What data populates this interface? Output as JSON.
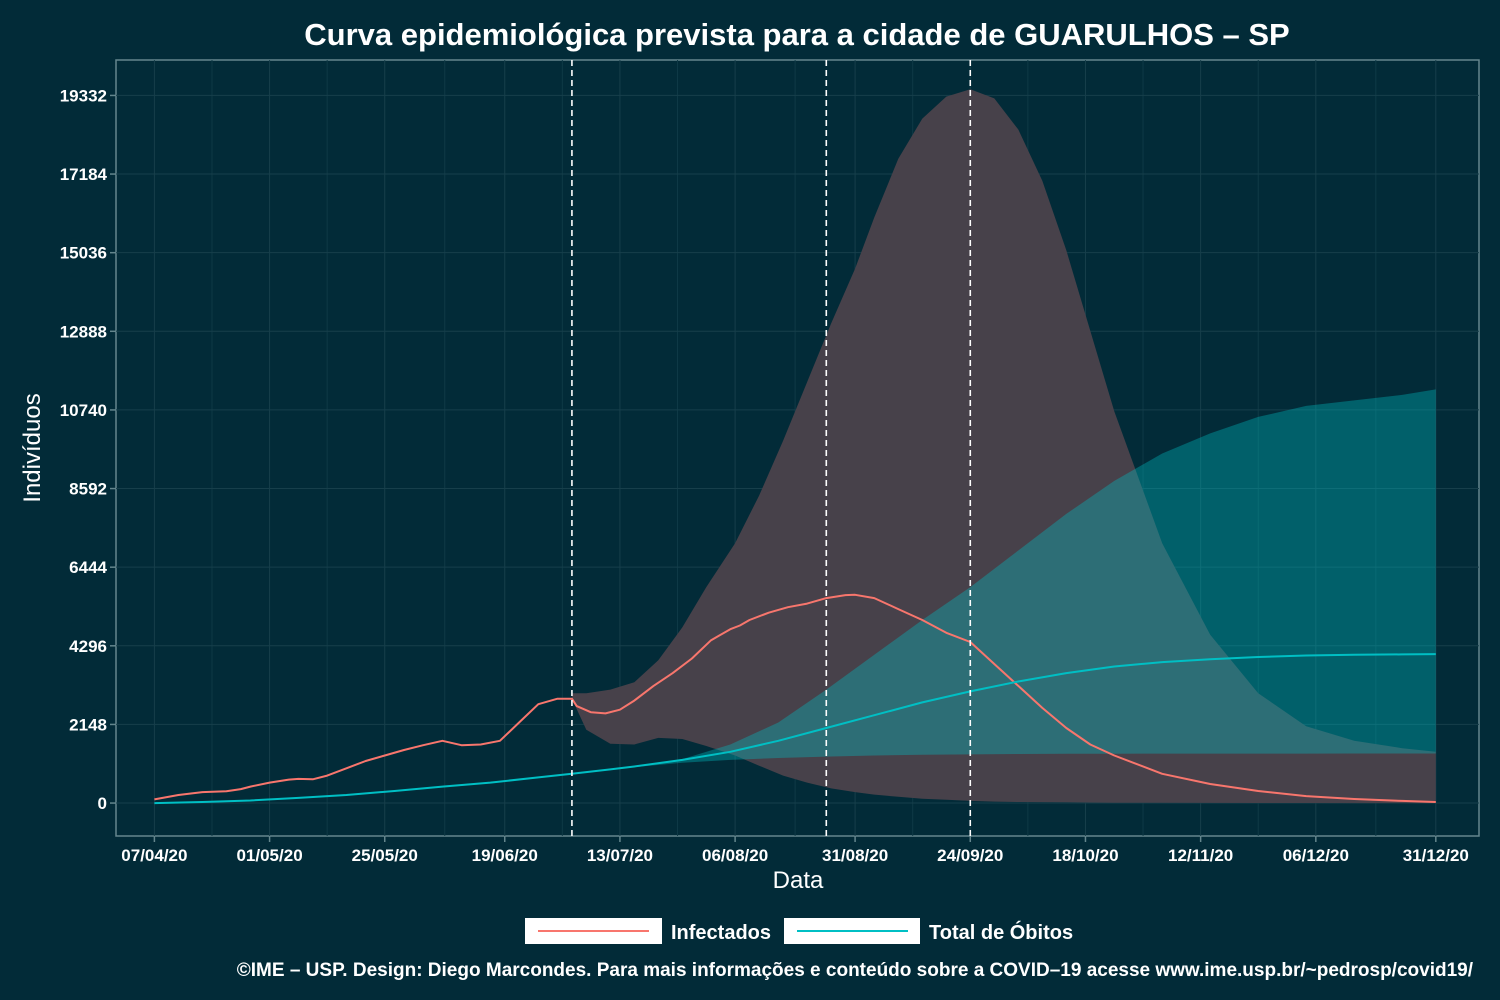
{
  "chart_data": {
    "type": "line",
    "title": "Curva epidemiológica prevista para a cidade de GUARULHOS – SP",
    "xlabel": "Data",
    "ylabel": "Indivíduos",
    "x_start": "07/04/20",
    "x_end": "31/12/20",
    "xlim_days": [
      -8,
      276
    ],
    "ylim": [
      -900,
      20300
    ],
    "x_ticks": [
      {
        "day": 0,
        "label": "07/04/20"
      },
      {
        "day": 24,
        "label": "01/05/20"
      },
      {
        "day": 48,
        "label": "25/05/20"
      },
      {
        "day": 73,
        "label": "19/06/20"
      },
      {
        "day": 97,
        "label": "13/07/20"
      },
      {
        "day": 121,
        "label": "06/08/20"
      },
      {
        "day": 146,
        "label": "31/08/20"
      },
      {
        "day": 170,
        "label": "24/09/20"
      },
      {
        "day": 194,
        "label": "18/10/20"
      },
      {
        "day": 218,
        "label": "12/11/20"
      },
      {
        "day": 242,
        "label": "06/12/20"
      },
      {
        "day": 267,
        "label": "31/12/20"
      }
    ],
    "y_ticks": [
      0,
      2148,
      4296,
      6444,
      8592,
      10740,
      12888,
      15036,
      17184,
      19332
    ],
    "vlines_days": [
      87,
      140,
      170
    ],
    "series": [
      {
        "name": "Infectados",
        "color": "#f8766d",
        "x": [
          0,
          5,
          10,
          15,
          18,
          20,
          24,
          28,
          30,
          33,
          36,
          40,
          44,
          48,
          52,
          56,
          60,
          64,
          68,
          72,
          76,
          80,
          84,
          87,
          88,
          91,
          94,
          97,
          100,
          104,
          108,
          112,
          116,
          120,
          122,
          124,
          128,
          132,
          136,
          140,
          144,
          146,
          150,
          155,
          160,
          165,
          170,
          175,
          180,
          185,
          190,
          195,
          200,
          210,
          220,
          230,
          240,
          250,
          260,
          267
        ],
        "y": [
          100,
          220,
          300,
          320,
          380,
          450,
          560,
          640,
          660,
          650,
          750,
          950,
          1150,
          1300,
          1450,
          1580,
          1700,
          1580,
          1600,
          1700,
          2200,
          2700,
          2850,
          2850,
          2650,
          2480,
          2450,
          2550,
          2800,
          3200,
          3550,
          3950,
          4450,
          4750,
          4850,
          5000,
          5200,
          5350,
          5450,
          5600,
          5680,
          5690,
          5600,
          5300,
          5000,
          4650,
          4400,
          3800,
          3200,
          2600,
          2050,
          1600,
          1300,
          800,
          520,
          330,
          190,
          110,
          60,
          30
        ]
      },
      {
        "name": "Total de Óbitos",
        "color": "#00bfc4",
        "x": [
          0,
          10,
          20,
          30,
          40,
          50,
          60,
          70,
          80,
          87,
          95,
          100,
          110,
          120,
          130,
          140,
          150,
          160,
          170,
          180,
          190,
          200,
          210,
          220,
          230,
          240,
          250,
          260,
          267
        ],
        "y": [
          0,
          30,
          70,
          140,
          220,
          330,
          450,
          560,
          700,
          800,
          920,
          1000,
          1180,
          1400,
          1700,
          2050,
          2400,
          2750,
          3050,
          3320,
          3550,
          3730,
          3850,
          3930,
          3990,
          4030,
          4050,
          4060,
          4070
        ]
      }
    ],
    "bands": [
      {
        "name": "Infectados",
        "color": "#f8766d",
        "x": [
          87,
          90,
          95,
          100,
          105,
          110,
          115,
          121,
          126,
          131,
          136,
          141,
          146,
          150,
          155,
          160,
          165,
          170,
          175,
          180,
          185,
          190,
          195,
          200,
          210,
          220,
          230,
          240,
          250,
          260,
          267
        ],
        "upper": [
          3000,
          3000,
          3100,
          3300,
          3900,
          4800,
          5900,
          7100,
          8400,
          9900,
          11500,
          13100,
          14600,
          16000,
          17600,
          18700,
          19300,
          19500,
          19250,
          18400,
          17000,
          15100,
          12900,
          10700,
          7100,
          4600,
          3000,
          2100,
          1700,
          1500,
          1400
        ],
        "lower": [
          2850,
          2000,
          1620,
          1600,
          1780,
          1750,
          1560,
          1300,
          1020,
          750,
          560,
          400,
          300,
          230,
          170,
          120,
          90,
          60,
          40,
          30,
          25,
          20,
          15,
          10,
          6,
          3,
          2,
          1,
          0,
          0,
          0
        ]
      },
      {
        "name": "Total de Óbitos",
        "color": "#00bfc4",
        "x": [
          87,
          95,
          100,
          110,
          120,
          130,
          140,
          150,
          160,
          170,
          180,
          190,
          200,
          210,
          220,
          230,
          240,
          250,
          260,
          267
        ],
        "upper": [
          800,
          920,
          1000,
          1200,
          1600,
          2200,
          3100,
          4050,
          5000,
          5900,
          6900,
          7900,
          8800,
          9550,
          10100,
          10550,
          10850,
          11000,
          11150,
          11300
        ],
        "lower": [
          800,
          910,
          980,
          1100,
          1180,
          1230,
          1270,
          1300,
          1320,
          1330,
          1340,
          1345,
          1348,
          1350,
          1350,
          1352,
          1352,
          1353,
          1353,
          1353
        ]
      }
    ],
    "legend": {
      "position": "bottom",
      "entries": [
        "Infectados",
        "Total de Óbitos"
      ]
    },
    "caption": "©IME – USP. Design: Diego Marcondes. Para mais informações e conteúdo sobre a COVID–19 acesse www.ime.usp.br/~pedrosp/covid19/"
  }
}
